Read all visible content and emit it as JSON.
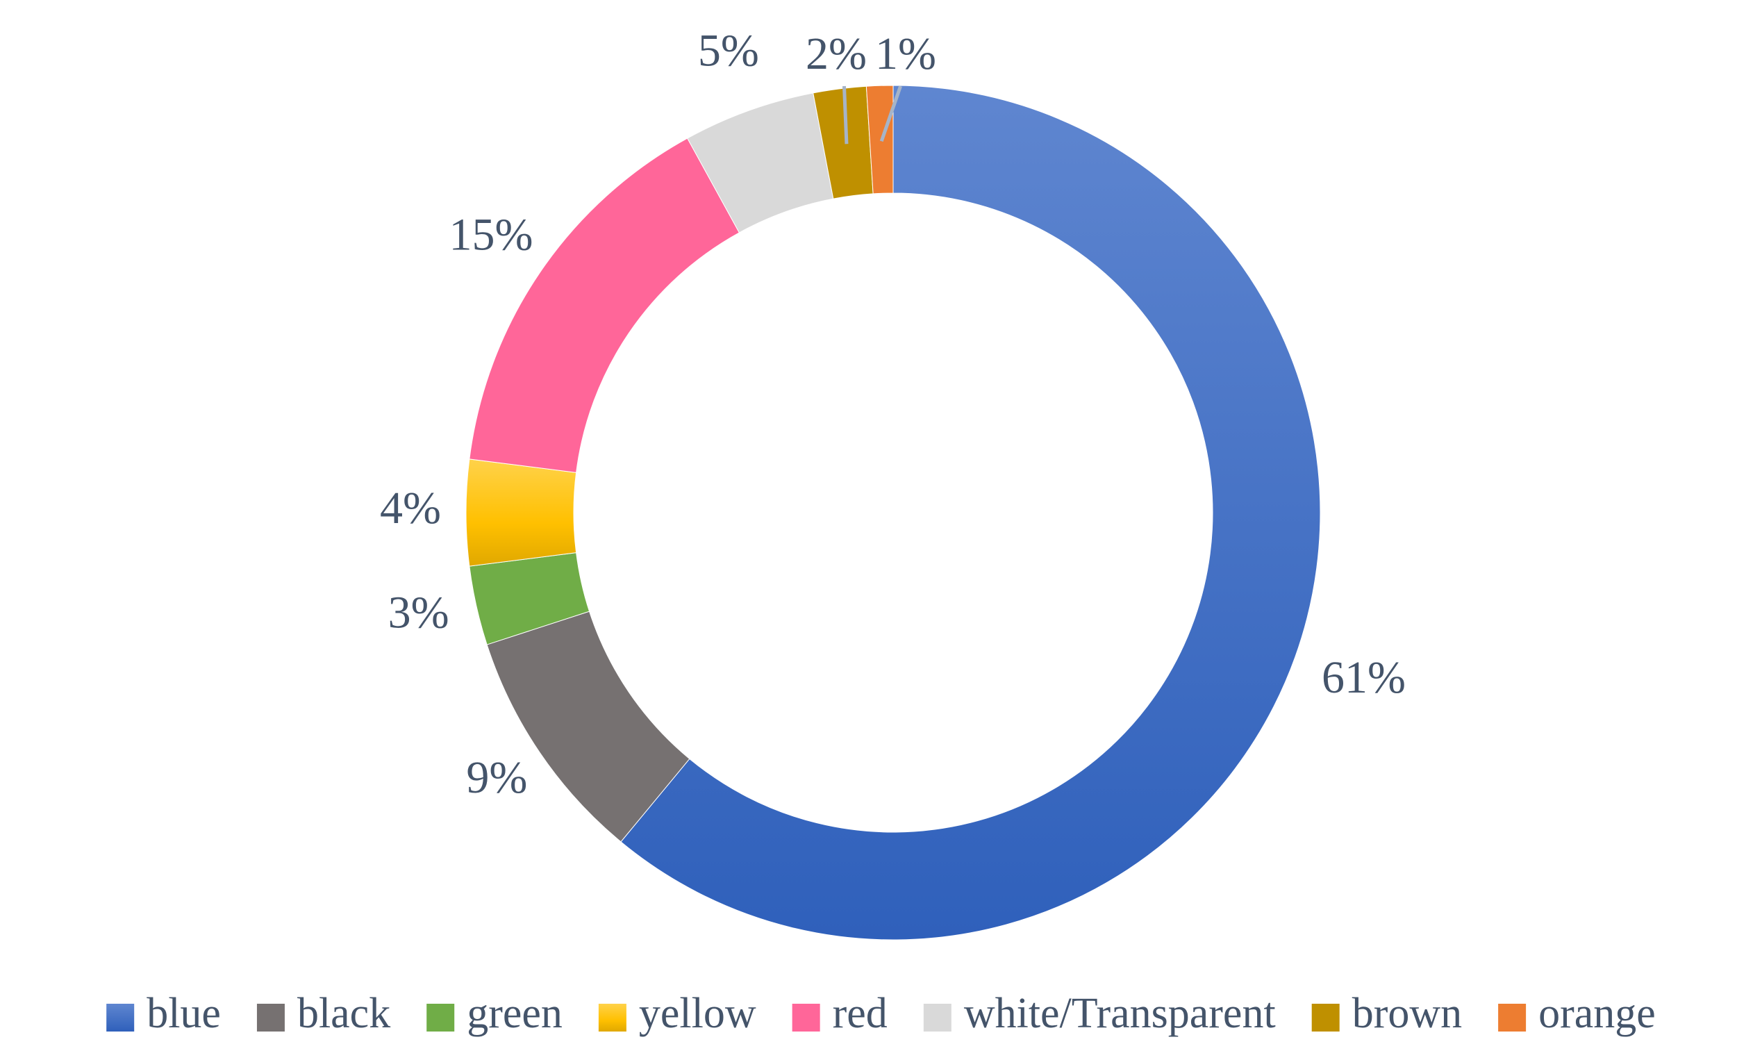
{
  "chart_data": {
    "type": "pie",
    "variant": "donut",
    "title": "",
    "categories": [
      "blue",
      "black",
      "green",
      "yellow",
      "red",
      "white/Transparent",
      "brown",
      "orange"
    ],
    "values": [
      61,
      9,
      3,
      4,
      15,
      5,
      2,
      1
    ],
    "value_labels": [
      "61%",
      "9%",
      "3%",
      "4%",
      "15%",
      "5%",
      "2%",
      "1%"
    ],
    "colors": [
      "#3f6fc6",
      "#767171",
      "#70ad47",
      "#ffc000",
      "#ff6699",
      "#d9d9d9",
      "#bf9000",
      "#ed7d31"
    ],
    "start": "12 o'clock",
    "direction": "clockwise",
    "legend": {
      "position": "bottom",
      "items": [
        "blue",
        "black",
        "green",
        "yellow",
        "red",
        "white/Transparent",
        "brown",
        "orange"
      ]
    }
  }
}
